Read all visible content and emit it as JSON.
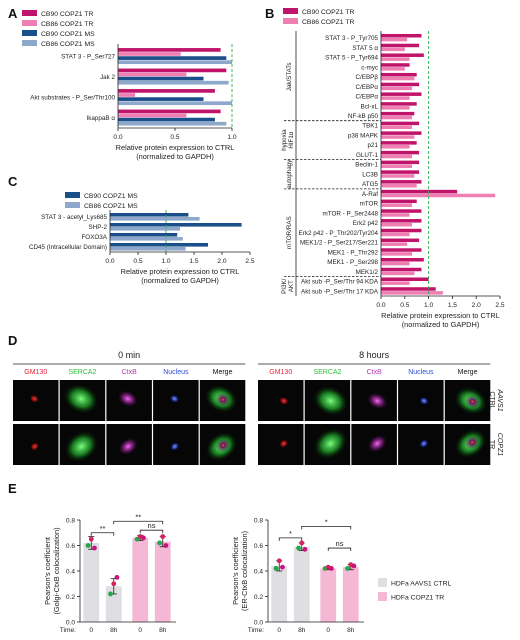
{
  "panels": {
    "a": "A",
    "b": "B",
    "c": "C",
    "d": "D",
    "e": "E"
  },
  "colors": {
    "cb90_tr": "#c0146a",
    "cb86_tr": "#ef7fb3",
    "cb90_ms": "#1b4f8a",
    "cb86_ms": "#8ea8cc",
    "threshold": "#2bb34a",
    "ctrl_bar": "#dedee3",
    "tr_bar": "#f4b8d4",
    "dot_green": "#22a84a",
    "dot_red": "#d6245c",
    "dot_magenta": "#c7157a"
  },
  "axis_title": [
    "Relative protein expression to CTRL",
    "(normalized to GAPDH)"
  ],
  "chart_data": [
    {
      "id": "A",
      "type": "bar",
      "orientation": "horizontal",
      "categories": [
        "STAT 3 - P_Ser727",
        "Jak 2",
        "Akt substrates - P_Ser/Thr100",
        "IkappaB α"
      ],
      "series": [
        {
          "name": "CB90 COPZ1 TR",
          "color_key": "cb90_tr",
          "values": [
            0.9,
            0.95,
            0.85,
            0.9
          ]
        },
        {
          "name": "CB86 COPZ1 TR",
          "color_key": "cb86_tr",
          "values": [
            0.55,
            0.6,
            0.15,
            0.6
          ]
        },
        {
          "name": "CB90 COPZ1 MS",
          "color_key": "cb90_ms",
          "values": [
            0.95,
            0.75,
            0.75,
            0.85
          ]
        },
        {
          "name": "CB86 COPZ1 MS",
          "color_key": "cb86_ms",
          "values": [
            1.0,
            0.97,
            1.0,
            0.95
          ]
        }
      ],
      "xlim": [
        0,
        1.0
      ],
      "xticks": [
        "0.0",
        "0.5",
        "1.0"
      ],
      "threshold": 1.0
    },
    {
      "id": "B",
      "type": "bar",
      "orientation": "horizontal",
      "categories": [
        "STAT 3 - P_Tyr705",
        "STAT 5 α",
        "STAT 5 - P_Tyr694",
        "c-myc",
        "C/EBPβ",
        "C/EBPα",
        "C/EBPα",
        "Bcl-xL",
        "NF-kB p50",
        "TBK1",
        "p38 MAPK",
        "p21",
        "GLUT-1",
        "Beclin-1",
        "LC3B",
        "ATG5",
        "A-Raf",
        "mTOR",
        "mTOR - P_Ser2448",
        "Erk2 p42",
        "Erk2 p42 - P_Thr202/Tyr204",
        "MEK1/2 - P_Ser217/Ser221",
        "MEK1 - P_Thr292",
        "MEK1 - P_Ser298",
        "MEK1/2",
        "Akt sub -P_Ser/Thr 94 KDA",
        "Akt sub -P_Ser/Thr 17 KDA"
      ],
      "series": [
        {
          "name": "CB90 COPZ1 TR",
          "color_key": "cb90_tr",
          "values": [
            0.85,
            0.8,
            0.9,
            0.6,
            0.75,
            0.8,
            0.85,
            0.75,
            0.7,
            0.8,
            0.85,
            0.75,
            0.8,
            0.8,
            0.8,
            0.85,
            1.6,
            0.75,
            0.85,
            0.85,
            0.85,
            0.8,
            0.85,
            0.9,
            0.85,
            1.0,
            1.15
          ]
        },
        {
          "name": "CB86 COPZ1 TR",
          "color_key": "cb86_tr",
          "values": [
            0.55,
            0.5,
            0.6,
            0.5,
            0.7,
            0.65,
            0.6,
            0.6,
            0.65,
            0.65,
            0.7,
            0.6,
            0.65,
            0.65,
            0.7,
            0.75,
            2.4,
            0.65,
            0.6,
            0.65,
            0.6,
            0.55,
            0.65,
            0.6,
            0.7,
            0.6,
            1.3
          ]
        }
      ],
      "groups": [
        {
          "label": "Jak/STATs",
          "from": 0,
          "to": 8
        },
        {
          "label": "hypoxia",
          "label2": "HIF1α",
          "from": 9,
          "to": 12
        },
        {
          "label": "autophagy",
          "from": 13,
          "to": 15
        },
        {
          "label": "mTOR/RAS",
          "from": 16,
          "to": 24
        },
        {
          "label": "PI3K/",
          "label2": "AKT",
          "from": 25,
          "to": 26
        }
      ],
      "xlim": [
        0,
        2.5
      ],
      "xticks": [
        "0.0",
        "0.5",
        "1.0",
        "1.5",
        "2.0",
        "2.5"
      ],
      "threshold": 1.0
    },
    {
      "id": "C",
      "type": "bar",
      "orientation": "horizontal",
      "categories": [
        "STAT 3 - acetyl_Lys685",
        "SHP-2",
        "FOXO3A",
        "CD45 (Intracellular Domain)"
      ],
      "series": [
        {
          "name": "CB90 COPZ1 MS",
          "color_key": "cb90_ms",
          "values": [
            1.4,
            2.35,
            1.2,
            1.75
          ]
        },
        {
          "name": "CB86 COPZ1 MS",
          "color_key": "cb86_ms",
          "values": [
            1.6,
            1.25,
            1.3,
            1.35
          ]
        }
      ],
      "xlim": [
        0,
        2.5
      ],
      "xticks": [
        "0.0",
        "0.5",
        "1.0",
        "1.5",
        "2.0",
        "2.5"
      ],
      "threshold": 1.0
    },
    {
      "id": "E1",
      "type": "bar",
      "ylabel": [
        "Pearson's coefficient",
        "(Golgi-CtxB colocalization)"
      ],
      "ylim": [
        0,
        0.8
      ],
      "yticks": [
        "0.0",
        "0.2",
        "0.4",
        "0.6",
        "0.8"
      ],
      "bars": [
        {
          "group": "ctrl",
          "time": "0",
          "value": 0.62,
          "err": 0.05,
          "dots": [
            0.6,
            0.65,
            0.58
          ]
        },
        {
          "group": "ctrl",
          "time": "8h",
          "value": 0.28,
          "err": 0.06,
          "dots": [
            0.22,
            0.3,
            0.35
          ]
        },
        {
          "group": "tr",
          "time": "0",
          "value": 0.66,
          "err": 0.02,
          "dots": [
            0.65,
            0.67,
            0.66
          ]
        },
        {
          "group": "tr",
          "time": "8h",
          "value": 0.63,
          "err": 0.04,
          "dots": [
            0.62,
            0.67,
            0.6
          ]
        }
      ],
      "sig": [
        {
          "from": 0,
          "to": 1,
          "label": "**",
          "level": 0.7
        },
        {
          "from": 2,
          "to": 3,
          "label": "ns",
          "level": 0.72
        },
        {
          "from": 1,
          "to": 3,
          "label": "**",
          "level": 0.79
        }
      ]
    },
    {
      "id": "E2",
      "type": "bar",
      "ylabel": [
        "Pearson's coefficient",
        "(ER-CtxB colocalization)"
      ],
      "ylim": [
        0,
        0.8
      ],
      "yticks": [
        "0.0",
        "0.2",
        "0.4",
        "0.6",
        "0.8"
      ],
      "bars": [
        {
          "group": "ctrl",
          "time": "0",
          "value": 0.44,
          "err": 0.04,
          "dots": [
            0.42,
            0.48,
            0.43
          ]
        },
        {
          "group": "ctrl",
          "time": "8h",
          "value": 0.59,
          "err": 0.03,
          "dots": [
            0.58,
            0.62,
            0.57
          ]
        },
        {
          "group": "tr",
          "time": "0",
          "value": 0.42,
          "err": 0.01,
          "dots": [
            0.42,
            0.43,
            0.42
          ]
        },
        {
          "group": "tr",
          "time": "8h",
          "value": 0.43,
          "err": 0.02,
          "dots": [
            0.42,
            0.45,
            0.44
          ]
        }
      ],
      "sig": [
        {
          "from": 0,
          "to": 1,
          "label": "*",
          "level": 0.66
        },
        {
          "from": 2,
          "to": 3,
          "label": "ns",
          "level": 0.58
        },
        {
          "from": 1,
          "to": 3,
          "label": "*",
          "level": 0.75
        }
      ]
    }
  ],
  "panel_e_legend": [
    "HDFa AAVS1 CTRL",
    "HDFa COPZ1 TR"
  ],
  "panel_e_time_label": "Time:",
  "panel_d": {
    "groups": [
      "0 min",
      "8 hours"
    ],
    "channels": [
      {
        "name": "GM130",
        "color": "#e8263a"
      },
      {
        "name": "SERCA2",
        "color": "#2fbf3a"
      },
      {
        "name": "CtxB",
        "color": "#b23ab0"
      },
      {
        "name": "Nucleus",
        "color": "#2e4fd6"
      },
      {
        "name": "Merge",
        "color": "#111111"
      }
    ],
    "rows": [
      {
        "line1": "AAVS1",
        "line2": "CTRL"
      },
      {
        "line1": "COPZ1",
        "line2": "TR"
      }
    ]
  }
}
